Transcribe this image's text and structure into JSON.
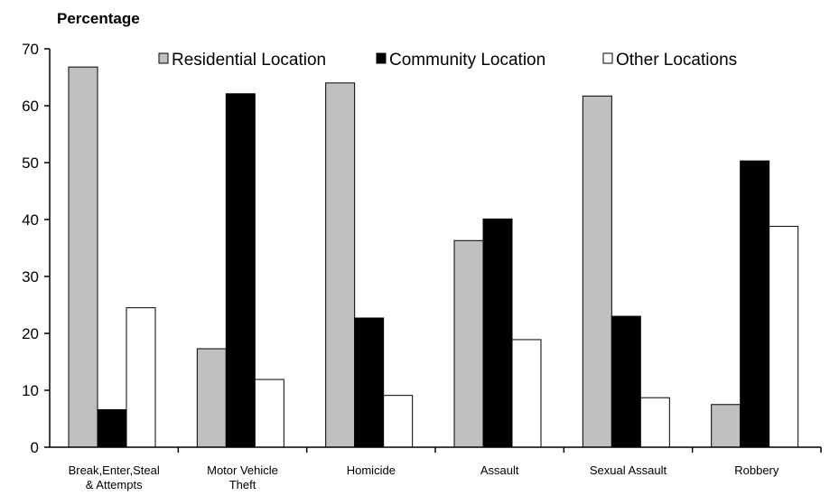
{
  "chart_data": {
    "type": "bar",
    "ylabel": "Percentage",
    "ylim": [
      0,
      70
    ],
    "yticks": [
      0,
      10,
      20,
      30,
      40,
      50,
      60,
      70
    ],
    "categories": [
      [
        "Break,Enter,Steal",
        "& Attempts"
      ],
      [
        "Motor Vehicle",
        "Theft"
      ],
      [
        "Homicide"
      ],
      [
        "Assault"
      ],
      [
        "Sexual Assault"
      ],
      [
        "Robbery"
      ]
    ],
    "series": [
      {
        "name": "Residential Location",
        "color": "#c0c0c0",
        "values": [
          66.8,
          17.3,
          64.0,
          36.3,
          61.7,
          7.5
        ]
      },
      {
        "name": "Community Location",
        "color": "#000000",
        "values": [
          6.6,
          62.1,
          22.7,
          40.1,
          23.0,
          50.3
        ]
      },
      {
        "name": "Other Locations",
        "color": "#ffffff",
        "values": [
          24.5,
          11.9,
          9.1,
          18.9,
          8.7,
          38.8
        ]
      }
    ],
    "legend_position": "top",
    "grid": false
  }
}
